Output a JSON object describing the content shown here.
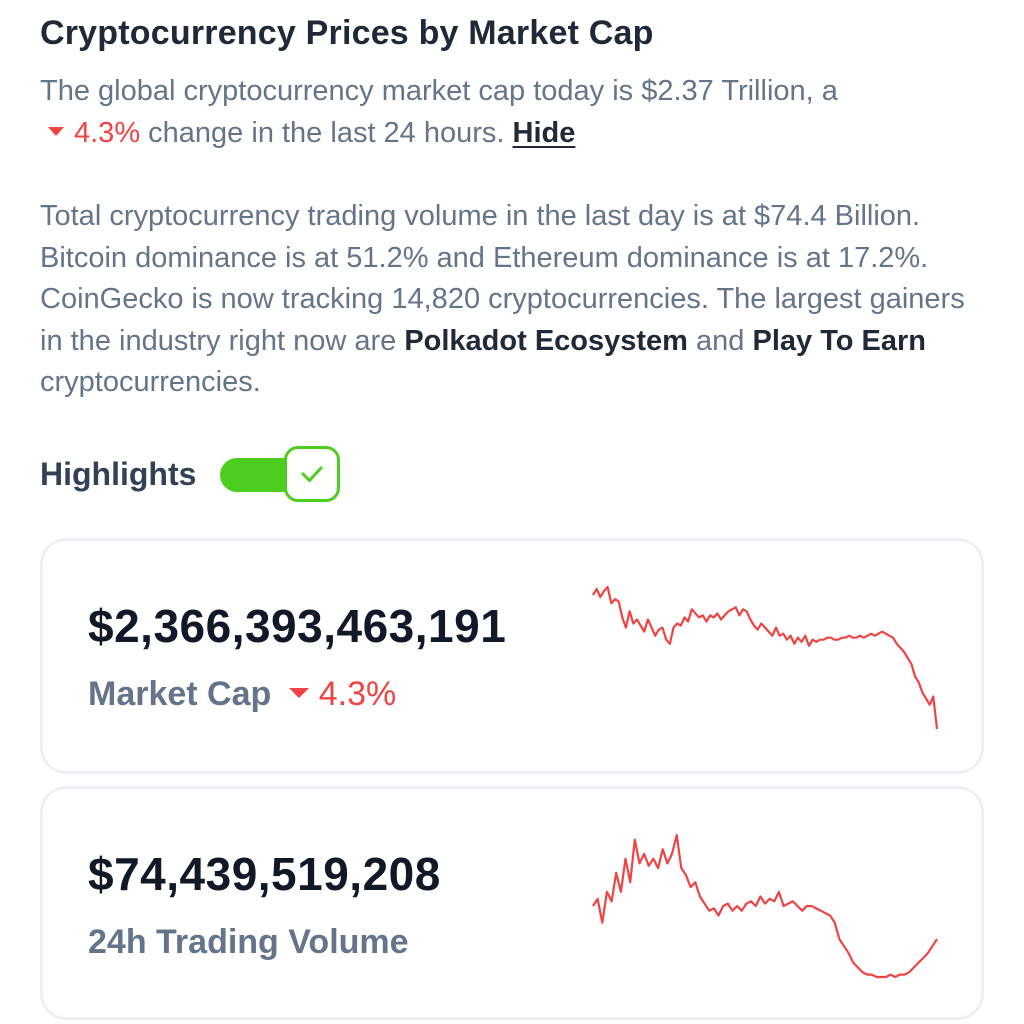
{
  "header": {
    "title": "Cryptocurrency Prices by Market Cap"
  },
  "summary": {
    "line1_prefix": "The global cryptocurrency market cap today is $2.37 Trillion, a",
    "change_value": "4.3%",
    "line1_suffix": "change in the last 24 hours.",
    "hide_label": "Hide",
    "para2_text": "Total cryptocurrency trading volume in the last day is at $74.4 Billion. Bitcoin dominance is at 51.2% and Ethereum dominance is at 17.2%. CoinGecko is now tracking 14,820 cryptocurrencies. The largest gainers in the industry right now are",
    "gainer1": "Polkadot Ecosystem",
    "and_text": "and",
    "gainer2": "Play To Earn",
    "para2_suffix": "cryptocurrencies."
  },
  "highlights": {
    "label": "Highlights",
    "toggle_on": true,
    "toggle_color": "#4ccd1f"
  },
  "cards": [
    {
      "value": "$2,366,393,463,191",
      "label": "Market Cap",
      "change": "4.3%",
      "change_direction": "down",
      "sparkline_color": "#ef4444",
      "sparkline": [
        86,
        89,
        85,
        88,
        90,
        82,
        84,
        83,
        75,
        70,
        78,
        72,
        74,
        71,
        68,
        74,
        70,
        66,
        69,
        70,
        64,
        62,
        70,
        72,
        71,
        75,
        73,
        79,
        77,
        75,
        76,
        73,
        76,
        75,
        77,
        74,
        76,
        78,
        79,
        80,
        76,
        79,
        78,
        74,
        71,
        69,
        72,
        70,
        68,
        66,
        70,
        66,
        67,
        64,
        66,
        62,
        65,
        63,
        66,
        61,
        64,
        63,
        64,
        64,
        65,
        65,
        64,
        64,
        65,
        65,
        66,
        65,
        65,
        66,
        65,
        66,
        67,
        66,
        67,
        68,
        67,
        66,
        65,
        62,
        60,
        58,
        55,
        52,
        46,
        43,
        38,
        35,
        32,
        36,
        20
      ]
    },
    {
      "value": "$74,439,519,208",
      "label": "24h Trading Volume",
      "sparkline_color": "#ef4444",
      "sparkline": [
        62,
        65,
        55,
        68,
        64,
        76,
        68,
        82,
        72,
        90,
        80,
        84,
        79,
        82,
        78,
        86,
        80,
        84,
        92,
        78,
        75,
        70,
        72,
        66,
        63,
        60,
        61,
        58,
        62,
        63,
        60,
        62,
        60,
        63,
        64,
        62,
        66,
        63,
        65,
        64,
        68,
        62,
        63,
        64,
        62,
        60,
        62,
        62,
        61,
        60,
        59,
        58,
        55,
        48,
        45,
        42,
        38,
        36,
        34,
        33,
        33,
        32,
        32,
        32,
        33,
        32,
        33,
        33,
        34,
        36,
        38,
        40,
        42,
        45,
        48
      ]
    }
  ]
}
